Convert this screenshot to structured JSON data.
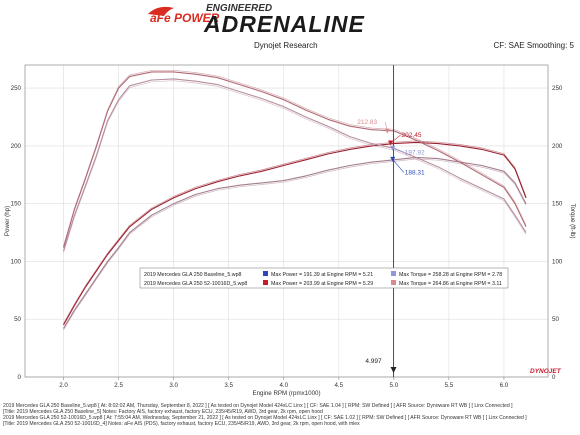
{
  "header": {
    "logo_brand": "aFe POWER",
    "logo_engineered": "ENGINEERED",
    "logo_adrenaline": "ADRENALINE",
    "subtitle": "Dynojet Research",
    "smoothing": "CF: SAE Smoothing: 5",
    "brand_mark": "DYNOJET"
  },
  "colors": {
    "baseline_power": "#a37d8e",
    "baseline_torque": "#b58e9e",
    "tuned_power": "#9c2231",
    "tuned_torque": "#b06a74",
    "legend_blue": "#2b49b8",
    "legend_red": "#c61c2a",
    "legend_lightblue": "#8c96d8",
    "legend_pink": "#d98a93",
    "grid": "#dddddd",
    "cursor": "#3b3f55"
  },
  "chart_data": {
    "type": "line",
    "xlabel": "Engine RPM (rpmx1000)",
    "ylabel_left": "Power (hp)",
    "ylabel_right": "Torque (ft-lb)",
    "xlim": [
      1.65,
      6.4
    ],
    "ylim": [
      0,
      270
    ],
    "x_ticks": [
      "2.0",
      "2.5",
      "3.0",
      "3.5",
      "4.0",
      "4.5",
      "5.0",
      "5.5",
      "6.0"
    ],
    "y_ticks": [
      "0",
      "50",
      "100",
      "150",
      "200",
      "250"
    ],
    "grid": true,
    "cursor_x": 4.997,
    "cursor_label": "4.997",
    "annotations": [
      {
        "text": "212.83",
        "x": 4.94,
        "y": 212.8,
        "color": "#d98a93"
      },
      {
        "text": "202.45",
        "x": 4.97,
        "y": 202.45,
        "color": "#c61c2a"
      },
      {
        "text": "197.92",
        "x": 4.99,
        "y": 197.9,
        "color": "#8c96d8"
      },
      {
        "text": "188.31",
        "x": 4.99,
        "y": 188.3,
        "color": "#2b49b8"
      }
    ],
    "series": [
      {
        "name": "2019 Mercedes GLA 250 Baseline_5.wp8 Power",
        "role": "baseline_power",
        "x": [
          2.0,
          2.1,
          2.2,
          2.3,
          2.4,
          2.5,
          2.6,
          2.8,
          3.0,
          3.2,
          3.4,
          3.6,
          3.8,
          4.0,
          4.2,
          4.4,
          4.6,
          4.8,
          5.0,
          5.2,
          5.4,
          5.6,
          5.8,
          6.0,
          6.1,
          6.2
        ],
        "y": [
          42,
          58,
          72,
          86,
          100,
          112,
          125,
          140,
          150,
          158,
          163,
          166,
          168,
          170,
          174,
          179,
          183,
          186,
          188,
          190,
          189,
          186,
          183,
          178,
          168,
          150
        ]
      },
      {
        "name": "2019 Mercedes GLA 250 52-10016D_5.wp8 Power",
        "role": "tuned_power",
        "x": [
          2.0,
          2.1,
          2.2,
          2.3,
          2.4,
          2.5,
          2.6,
          2.8,
          3.0,
          3.2,
          3.4,
          3.6,
          3.8,
          4.0,
          4.2,
          4.4,
          4.6,
          4.8,
          5.0,
          5.2,
          5.4,
          5.6,
          5.8,
          6.0,
          6.1,
          6.2
        ],
        "y": [
          45,
          62,
          78,
          92,
          106,
          118,
          130,
          145,
          155,
          163,
          169,
          174,
          178,
          183,
          188,
          193,
          197,
          200,
          202,
          203,
          202,
          200,
          197,
          192,
          180,
          155
        ]
      },
      {
        "name": "2019 Mercedes GLA 250 Baseline_5.wp8 Torque",
        "role": "baseline_torque",
        "x": [
          2.0,
          2.1,
          2.2,
          2.3,
          2.4,
          2.5,
          2.6,
          2.8,
          3.0,
          3.2,
          3.4,
          3.6,
          3.8,
          4.0,
          4.2,
          4.4,
          4.6,
          4.8,
          5.0,
          5.2,
          5.4,
          5.6,
          5.8,
          6.0,
          6.1,
          6.2
        ],
        "y": [
          109,
          140,
          166,
          192,
          222,
          240,
          252,
          257,
          258,
          256,
          253,
          247,
          241,
          234,
          225,
          217,
          208,
          202,
          198,
          190,
          182,
          172,
          163,
          154,
          140,
          125
        ]
      },
      {
        "name": "2019 Mercedes GLA 250 52-10016D_5.wp8 Torque",
        "role": "tuned_torque",
        "x": [
          2.0,
          2.1,
          2.2,
          2.3,
          2.4,
          2.5,
          2.6,
          2.8,
          3.0,
          3.2,
          3.4,
          3.6,
          3.8,
          4.0,
          4.2,
          4.4,
          4.6,
          4.8,
          5.0,
          5.2,
          5.4,
          5.6,
          5.8,
          6.0,
          6.1,
          6.2
        ],
        "y": [
          112,
          145,
          172,
          200,
          230,
          250,
          260,
          264,
          264,
          262,
          259,
          253,
          247,
          240,
          231,
          223,
          217,
          214,
          213,
          205,
          196,
          186,
          175,
          164,
          150,
          130
        ]
      }
    ]
  },
  "legend": {
    "row1": {
      "file": "2019 Mercedes GLA 250 Baseline_5.wp8",
      "max_power": "Max Power = 191.39 at Engine RPM = 5.21",
      "max_torque": "Max Torque = 258.28 at Engine RPM = 2.78"
    },
    "row2": {
      "file": "2019 Mercedes GLA 250 52-10016D_5.wp8",
      "max_power": "Max Power = 203.99 at Engine RPM = 5.29",
      "max_torque": "Max Torque = 264.86 at Engine RPM = 3.11"
    }
  },
  "footer": {
    "line1": "2019 Mercedes GLA 250 Baseline_5.wp8  [ At: 8:02:02 AM, Thursday, September 8, 2022 ] [ As tested on Dynojet Model 424xLC Linx ] [ CF: SAE 1.04 ] [ RPM: SW Defined ] [ AFR Source: Dynoware RT WB ] [ Linx Connected ]",
    "line2": "[Title: 2019 Mercedes GLA 250 Baseline_5]  Notes: Factory AIS, factory exhaust, factory ECU, 235/45/R19, AWD, 3rd gear, 2k rpm, open hood",
    "line3": "2019 Mercedes GLA 250 52-10016D_5.wp8  [ At: 7:55:04 AM, Wednesday, September 21, 2022 ] [ As tested on Dynojet Model 424xLC Linx ] [ CF: SAE 1.02 ] [ RPM: SW Defined ] [ AFR Source: Dynoware RT WB ] [ Linx Connected ]",
    "line4": "[Title: 2019 Mercedes GLA 250 52-10016D_4]  Notes: aFe AIS (PDS), factory exhaust, factory ECU, 235/45/R19, AWD, 3rd gear, 2k rpm, open hood, with mlex"
  }
}
